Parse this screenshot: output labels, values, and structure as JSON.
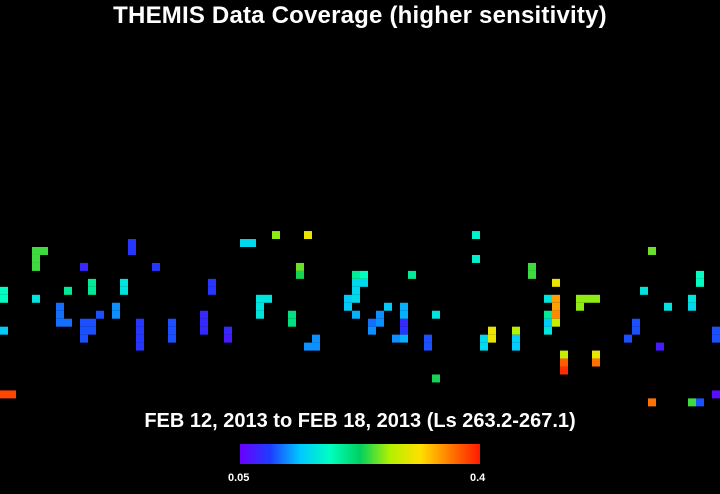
{
  "chart_data": {
    "type": "heatmap",
    "title": "THEMIS Data Coverage (higher sensitivity)",
    "subtitle": "FEB 12, 2013 to FEB 18, 2013 (Ls 263.2-267.1)",
    "colorbar": {
      "min_label": "0.05",
      "max_label": "0.4",
      "min": 0.05,
      "max": 0.4,
      "colors": [
        "#6a00ff",
        "#1e3cff",
        "#00c8ff",
        "#00ffc0",
        "#00d060",
        "#b4f000",
        "#ffe000",
        "#ff7a00",
        "#ff1a00"
      ]
    },
    "grid": {
      "cols": 90,
      "rows": 62
    },
    "cells": [
      [
        0,
        49,
        0.38
      ],
      [
        1,
        49,
        0.38
      ],
      [
        0,
        41,
        0.14
      ],
      [
        0,
        36,
        0.18
      ],
      [
        0,
        37,
        0.18
      ],
      [
        4,
        31,
        0.24
      ],
      [
        5,
        31,
        0.24
      ],
      [
        4,
        32,
        0.24
      ],
      [
        4,
        33,
        0.24
      ],
      [
        4,
        37,
        0.16
      ],
      [
        8,
        36,
        0.2
      ],
      [
        10,
        33,
        0.08
      ],
      [
        11,
        35,
        0.2
      ],
      [
        11,
        36,
        0.2
      ],
      [
        7,
        38,
        0.11
      ],
      [
        7,
        39,
        0.11
      ],
      [
        7,
        40,
        0.11
      ],
      [
        8,
        40,
        0.11
      ],
      [
        10,
        40,
        0.1
      ],
      [
        10,
        41,
        0.1
      ],
      [
        10,
        42,
        0.1
      ],
      [
        11,
        41,
        0.1
      ],
      [
        11,
        40,
        0.1
      ],
      [
        12,
        39,
        0.1
      ],
      [
        14,
        38,
        0.12
      ],
      [
        14,
        39,
        0.12
      ],
      [
        15,
        35,
        0.16
      ],
      [
        15,
        36,
        0.16
      ],
      [
        16,
        30,
        0.09
      ],
      [
        16,
        31,
        0.09
      ],
      [
        17,
        40,
        0.09
      ],
      [
        17,
        41,
        0.09
      ],
      [
        17,
        42,
        0.09
      ],
      [
        17,
        43,
        0.09
      ],
      [
        19,
        33,
        0.09
      ],
      [
        21,
        40,
        0.1
      ],
      [
        21,
        41,
        0.1
      ],
      [
        21,
        42,
        0.1
      ],
      [
        25,
        39,
        0.08
      ],
      [
        25,
        40,
        0.08
      ],
      [
        25,
        41,
        0.08
      ],
      [
        26,
        35,
        0.09
      ],
      [
        26,
        36,
        0.09
      ],
      [
        28,
        41,
        0.08
      ],
      [
        28,
        42,
        0.07
      ],
      [
        30,
        30,
        0.15
      ],
      [
        31,
        30,
        0.15
      ],
      [
        32,
        37,
        0.16
      ],
      [
        32,
        38,
        0.16
      ],
      [
        32,
        39,
        0.16
      ],
      [
        33,
        37,
        0.16
      ],
      [
        34,
        29,
        0.26
      ],
      [
        36,
        39,
        0.21
      ],
      [
        36,
        40,
        0.21
      ],
      [
        37,
        33,
        0.25
      ],
      [
        37,
        34,
        0.23
      ],
      [
        38,
        29,
        0.3
      ],
      [
        38,
        43,
        0.12
      ],
      [
        39,
        42,
        0.12
      ],
      [
        39,
        43,
        0.12
      ],
      [
        43,
        37,
        0.14
      ],
      [
        43,
        38,
        0.14
      ],
      [
        44,
        35,
        0.15
      ],
      [
        44,
        36,
        0.15
      ],
      [
        44,
        37,
        0.15
      ],
      [
        44,
        34,
        0.2
      ],
      [
        44,
        39,
        0.13
      ],
      [
        45,
        35,
        0.15
      ],
      [
        45,
        34,
        0.18
      ],
      [
        46,
        41,
        0.12
      ],
      [
        46,
        40,
        0.11
      ],
      [
        47,
        40,
        0.12
      ],
      [
        47,
        39,
        0.12
      ],
      [
        48,
        38,
        0.14
      ],
      [
        49,
        42,
        0.12
      ],
      [
        50,
        41,
        0.09
      ],
      [
        50,
        40,
        0.08
      ],
      [
        50,
        39,
        0.13
      ],
      [
        50,
        38,
        0.13
      ],
      [
        50,
        42,
        0.13
      ],
      [
        51,
        34,
        0.2
      ],
      [
        53,
        42,
        0.1
      ],
      [
        53,
        43,
        0.1
      ],
      [
        54,
        39,
        0.16
      ],
      [
        54,
        47,
        0.23
      ],
      [
        59,
        29,
        0.17
      ],
      [
        59,
        32,
        0.17
      ],
      [
        60,
        42,
        0.15
      ],
      [
        61,
        41,
        0.3
      ],
      [
        61,
        42,
        0.3
      ],
      [
        60,
        43,
        0.15
      ],
      [
        64,
        41,
        0.27
      ],
      [
        64,
        42,
        0.14
      ],
      [
        64,
        43,
        0.14
      ],
      [
        66,
        33,
        0.24
      ],
      [
        66,
        34,
        0.24
      ],
      [
        68,
        39,
        0.2
      ],
      [
        68,
        40,
        0.14
      ],
      [
        68,
        41,
        0.16
      ],
      [
        68,
        37,
        0.16
      ],
      [
        69,
        35,
        0.3
      ],
      [
        69,
        37,
        0.34
      ],
      [
        69,
        38,
        0.34
      ],
      [
        69,
        39,
        0.35
      ],
      [
        69,
        40,
        0.28
      ],
      [
        70,
        44,
        0.28
      ],
      [
        70,
        45,
        0.37
      ],
      [
        70,
        46,
        0.39
      ],
      [
        72,
        37,
        0.26
      ],
      [
        72,
        38,
        0.26
      ],
      [
        73,
        37,
        0.26
      ],
      [
        74,
        37,
        0.26
      ],
      [
        74,
        44,
        0.3
      ],
      [
        74,
        45,
        0.36
      ],
      [
        78,
        42,
        0.1
      ],
      [
        79,
        40,
        0.1
      ],
      [
        79,
        41,
        0.1
      ],
      [
        80,
        36,
        0.16
      ],
      [
        81,
        31,
        0.25
      ],
      [
        82,
        43,
        0.07
      ],
      [
        83,
        38,
        0.16
      ],
      [
        86,
        37,
        0.16
      ],
      [
        86,
        38,
        0.15
      ],
      [
        87,
        34,
        0.18
      ],
      [
        87,
        35,
        0.18
      ],
      [
        81,
        50,
        0.36
      ],
      [
        86,
        50,
        0.24
      ],
      [
        87,
        50,
        0.1
      ],
      [
        89,
        41,
        0.1
      ],
      [
        89,
        42,
        0.1
      ],
      [
        89,
        49,
        0.06
      ]
    ]
  }
}
